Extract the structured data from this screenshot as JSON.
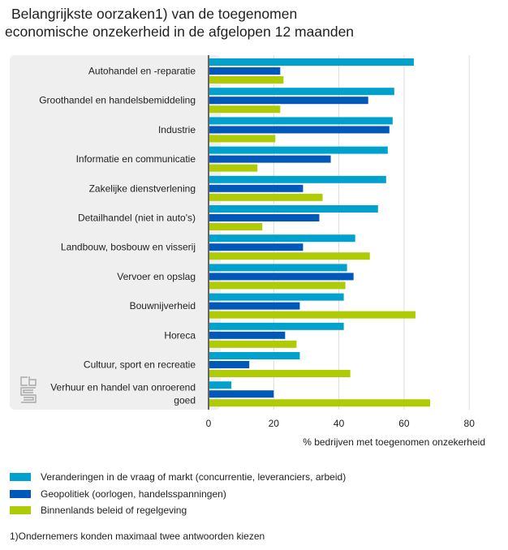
{
  "title": {
    "line1": "Belangrijkste oorzaken1) van de toegenomen",
    "line2": "economische onzekerheid in de afgelopen 12 maanden"
  },
  "logo": "cbs-logo",
  "footnote": "1)Ondernemers konden maximaal twee antwoorden kiezen",
  "colors": {
    "markt": "#00a1cd",
    "geopolitiek": "#0058b8",
    "beleid": "#afcb05",
    "panel": "#efefef",
    "grid": "#dcdcdc",
    "axis": "#666666"
  },
  "chart_data": {
    "type": "bar",
    "orientation": "horizontal",
    "title": "Belangrijkste oorzaken1) van de toegenomen economische onzekerheid in de afgelopen 12 maanden",
    "xlabel": "% bedrijven met toegenomen onzekerheid",
    "ylabel": "",
    "xlim": [
      0,
      80
    ],
    "xticks": [
      0,
      20,
      40,
      60,
      80
    ],
    "grid": true,
    "legend_position": "bottom",
    "categories": [
      "Autohandel en -reparatie",
      "Groothandel en handelsbemiddeling",
      "Industrie",
      "Informatie en communicatie",
      "Zakelijke dienstverlening",
      "Detailhandel (niet in auto's)",
      "Landbouw, bosbouw en visserij",
      "Vervoer en opslag",
      "Bouwnijverheid",
      "Horeca",
      "Cultuur, sport en recreatie",
      [
        "Verhuur en handel van onroerend",
        "goed"
      ]
    ],
    "series": [
      {
        "name": "Veranderingen in de vraag of markt (concurrentie, leveranciers, arbeid)",
        "color": "#00a1cd",
        "values": [
          63,
          57,
          56.5,
          55,
          54.5,
          52,
          45,
          42.5,
          41.5,
          41.5,
          28,
          7
        ]
      },
      {
        "name": "Geopolitiek (oorlogen, handelsspanningen)",
        "color": "#0058b8",
        "values": [
          22,
          49,
          55.5,
          37.5,
          29,
          34,
          29,
          44.5,
          28,
          23.5,
          12.5,
          20
        ]
      },
      {
        "name": "Binnenlands beleid of regelgeving",
        "color": "#afcb05",
        "values": [
          23,
          22,
          20.5,
          15,
          35,
          16.5,
          49.5,
          42,
          63.5,
          27,
          43.5,
          68
        ]
      }
    ]
  }
}
